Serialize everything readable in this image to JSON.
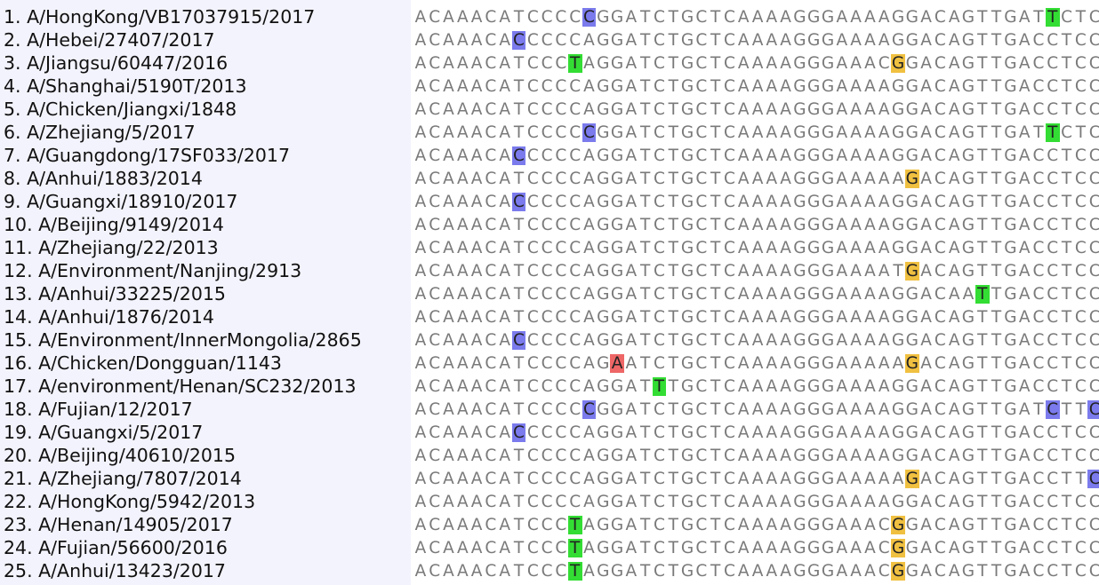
{
  "colors": {
    "names_bg": "#f3f3fd",
    "base_text": "#7a7a7a",
    "highlight_C": "#7b7bed",
    "highlight_T": "#33dd33",
    "highlight_A": "#ee6666"
  },
  "rows": [
    {
      "label": "1. A/HongKong/VB17037915/2017",
      "seq": "ACAAACATCCCCCGGATCTGCTCAAAAGGGAAAAGGACAGTTGATTCTC",
      "hl": [
        12,
        45
      ]
    },
    {
      "label": "2. A/Hebei/27407/2017",
      "seq": "ACAAACACCCCCAGGATCTGCTCAAAAGGGAAAAGGACAGTTGACCTCC",
      "hl": [
        7
      ]
    },
    {
      "label": "3. A/Jiangsu/60447/2016",
      "seq": "ACAAACATCCCTAGGATCTGCTCAAAAGGGAAACGGACAGTTGACCTCC",
      "hl": [
        11,
        34
      ]
    },
    {
      "label": "4. A/Shanghai/5190T/2013",
      "seq": "ACAAACATCCCCAGGATCTGCTCAAAAGGGAAAAGGACAGTTGACCTCC",
      "hl": []
    },
    {
      "label": "5. A/Chicken/Jiangxi/1848",
      "seq": "ACAAACATCCCCAGGATCTGCTCAAAAGGGAAAAGGACAGTTGACCTCC",
      "hl": []
    },
    {
      "label": "6. A/Zhejiang/5/2017",
      "seq": "ACAAACATCCCCCGGATCTGCTCAAAAGGGAAAAGGACAGTTGATTCTC",
      "hl": [
        12,
        45
      ]
    },
    {
      "label": "7. A/Guangdong/17SF033/2017",
      "seq": "ACAAACACCCCCAGGATCTGCTCAAAAGGGAAAAGGACAGTTGACCTCC",
      "hl": [
        7
      ]
    },
    {
      "label": "8. A/Anhui/1883/2014",
      "seq": "ACAAACATCCCCAGGATCTGCTCAAAAGGGAAAAAGACAGTTGACCTCC",
      "hl": [
        35
      ]
    },
    {
      "label": "9. A/Guangxi/18910/2017",
      "seq": "ACAAACACCCCCAGGATCTGCTCAAAAGGGAAAAGGACAGTTGACCTCC",
      "hl": [
        7
      ]
    },
    {
      "label": "10. A/Beijing/9149/2014",
      "seq": "ACAAACATCCCCAGGATCTGCTCAAAAGGGAAAAGGACAGTTGACCTCC",
      "hl": []
    },
    {
      "label": "11. A/Zhejiang/22/2013",
      "seq": "ACAAACATCCCCAGGATCTGCTCAAAAGGGAAAAGGACAGTTGACCTCC",
      "hl": []
    },
    {
      "label": "12. A/Environment/Nanjing/2913",
      "seq": "ACAAACATCCCCAGGATCTGCTCAAAAGGGAAAATGACAGTTGACCTCC",
      "hl": [
        35
      ]
    },
    {
      "label": "13. A/Anhui/33225/2015",
      "seq": "ACAAACATCCCCAGGATCTGCTCAAAAGGGAAAAGGACAATTGACCTCC",
      "hl": [
        40
      ]
    },
    {
      "label": "14. A/Anhui/1876/2014",
      "seq": "ACAAACATCCCCAGGATCTGCTCAAAAGGGAAAAGGACAGTTGACCTCC",
      "hl": []
    },
    {
      "label": "15. A/Environment/InnerMongolia/2865",
      "seq": "ACAAACACCCCCAGGATCTGCTCAAAAGGGAAAAGGACAGTTGACCTCC",
      "hl": [
        7
      ]
    },
    {
      "label": "16. A/Chicken/Dongguan/1143",
      "seq": "ACAAACATCCCCAGAATCTGCTCAAAAGGGAAAAAGACAGTTGACCTCC",
      "hl": [
        14,
        35
      ]
    },
    {
      "label": "17. A/environment/Henan/SC232/2013",
      "seq": "ACAAACATCCCCAGGATTTGCTCAAAAGGGAAAAGGACAGTTGACCTCC",
      "hl": [
        17
      ]
    },
    {
      "label": "18. A/Fujian/12/2017",
      "seq": "ACAAACATCCCCCGGATCTGCTCAAAAGGGAAAAGGACAGTTGATCTTC",
      "hl": [
        12,
        45,
        48
      ]
    },
    {
      "label": "19. A/Guangxi/5/2017",
      "seq": "ACAAACACCCCCAGGATCTGCTCAAAAGGGAAAAGGACAGTTGACCTCC",
      "hl": [
        7
      ]
    },
    {
      "label": "20. A/Beijing/40610/2015",
      "seq": "ACAAACATCCCCAGGATCTGCTCAAAAGGGAAAAGGACAGTTGACCTCC",
      "hl": []
    },
    {
      "label": "21. A/Zhejiang/7807/2014",
      "seq": "ACAAACATCCCCAGGATCTGCTCAAAAGGGAAAAAGACAGTTGACCTTC",
      "hl": [
        35,
        48
      ]
    },
    {
      "label": "22. A/HongKong/5942/2013",
      "seq": "ACAAACATCCCCAGGATCTGCTCAAAAGGGAAAAGGACAGTTGACCTCC",
      "hl": []
    },
    {
      "label": "23. A/Henan/14905/2017",
      "seq": "ACAAACATCCCTAGGATCTGCTCAAAAGGGAAACGGACAGTTGACCTCC",
      "hl": [
        11,
        34
      ]
    },
    {
      "label": "24. A/Fujian/56600/2016",
      "seq": "ACAAACATCCCTAGGATCTGCTCAAAAGGGAAACGGACAGTTGACCTCC",
      "hl": [
        11,
        34
      ]
    },
    {
      "label": "25. A/Anhui/13423/2017",
      "seq": "ACAAACATCCCTAGGATCTGCTCAAAAGGGAAACGGACAGTTGACCTCC",
      "hl": [
        11,
        34
      ]
    }
  ]
}
